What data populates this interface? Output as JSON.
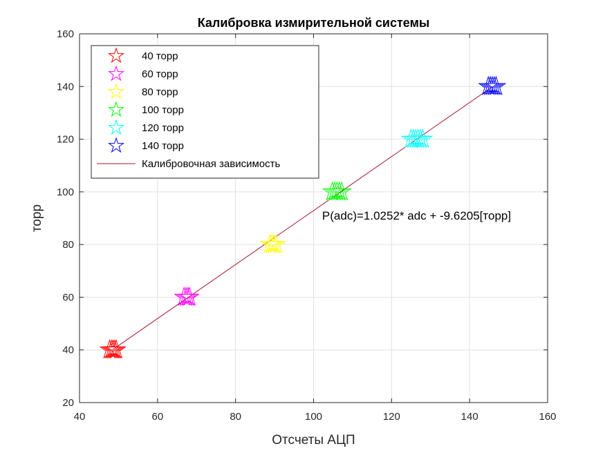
{
  "chart_data": {
    "type": "scatter",
    "title": "Калибровка измирительной системы",
    "xlabel": "Отсчеты АЦП",
    "ylabel": "торр",
    "xlim": [
      40,
      160
    ],
    "ylim": [
      20,
      160
    ],
    "xticks": [
      40,
      60,
      80,
      100,
      120,
      140,
      160
    ],
    "yticks": [
      20,
      40,
      60,
      80,
      100,
      120,
      140,
      160
    ],
    "grid": true,
    "legend_position": "top-left",
    "series": [
      {
        "name": "40 торр",
        "color": "#ff0000",
        "marker": "star",
        "x": [
          47.7,
          48.2,
          48.6,
          49.0,
          49.4
        ],
        "y": [
          40,
          40,
          40,
          40,
          40
        ]
      },
      {
        "name": "60 торр",
        "color": "#ff00ff",
        "marker": "star",
        "x": [
          66.8,
          67.3,
          67.8,
          68.2
        ],
        "y": [
          60,
          60,
          60,
          60
        ]
      },
      {
        "name": "80 торр",
        "color": "#ffff00",
        "marker": "star",
        "x": [
          88.8,
          89.3,
          89.8,
          90.4
        ],
        "y": [
          80,
          80,
          80,
          80
        ]
      },
      {
        "name": "100 торр",
        "color": "#00ff00",
        "marker": "star",
        "x": [
          104.8,
          105.4,
          106.0,
          106.6,
          107.2
        ],
        "y": [
          100,
          100,
          100,
          100,
          100
        ]
      },
      {
        "name": "120 торр",
        "color": "#00ffff",
        "marker": "star",
        "x": [
          125.0,
          125.6,
          126.2,
          126.8,
          127.4,
          128.0
        ],
        "y": [
          120,
          120,
          120,
          120,
          120,
          120
        ]
      },
      {
        "name": "140 торр",
        "color": "#0000ff",
        "marker": "star",
        "x": [
          144.8,
          145.3,
          145.8,
          146.3,
          146.8
        ],
        "y": [
          140,
          140,
          140,
          140,
          140
        ]
      }
    ],
    "fit_line": {
      "name": "Калибровочная зависимость",
      "color": "#a2142f",
      "x": [
        48.4,
        145.6
      ],
      "slope": 1.0252,
      "intercept": -9.6205
    },
    "annotation": {
      "text": "P(adc)=1.0252* adc + -9.6205[торр]",
      "x": 102.2,
      "y": 89.5
    }
  }
}
